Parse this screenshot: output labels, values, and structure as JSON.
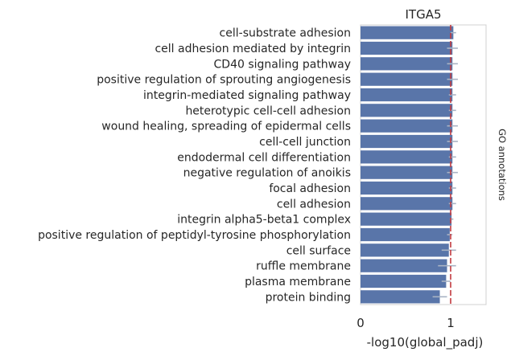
{
  "chart_data": {
    "type": "bar",
    "orientation": "horizontal",
    "title": "ITGA5",
    "xlabel": "-log10(global_padj)",
    "ylabel": "",
    "right_label": "GO annotations",
    "xlim": [
      0,
      1.4
    ],
    "xticks": [
      0,
      1
    ],
    "grid": false,
    "threshold_line": 1.0,
    "colors": {
      "bar": "#5975a9",
      "error": "#a9b3c4",
      "threshold": "#c23a3f",
      "frame": "#d0d0d0"
    },
    "categories": [
      "cell-substrate adhesion",
      "cell adhesion mediated by integrin",
      "CD40 signaling pathway",
      "positive regulation of sprouting angiogenesis",
      "integrin-mediated signaling pathway",
      "heterotypic cell-cell adhesion",
      "wound healing, spreading of epidermal cells",
      "cell-cell junction",
      "endodermal cell differentiation",
      "negative regulation of anoikis",
      "focal adhesion",
      "cell adhesion",
      "integrin alpha5-beta1 complex",
      "positive regulation of peptidyl-tyrosine phosphorylation",
      "cell surface",
      "ruffle membrane",
      "plasma membrane",
      "protein binding"
    ],
    "values": [
      1.03,
      1.02,
      1.02,
      1.02,
      1.02,
      1.02,
      1.02,
      1.02,
      1.02,
      1.02,
      1.02,
      1.02,
      1.01,
      0.99,
      0.98,
      0.96,
      0.95,
      0.88
    ],
    "error_low": [
      1.0,
      0.96,
      0.96,
      0.96,
      0.98,
      0.98,
      0.96,
      0.96,
      0.98,
      0.96,
      0.98,
      0.98,
      0.99,
      0.96,
      0.9,
      0.86,
      0.9,
      0.8
    ],
    "error_high": [
      1.06,
      1.08,
      1.08,
      1.08,
      1.06,
      1.06,
      1.08,
      1.08,
      1.06,
      1.08,
      1.06,
      1.06,
      1.03,
      1.02,
      1.06,
      1.06,
      1.0,
      0.96
    ]
  }
}
